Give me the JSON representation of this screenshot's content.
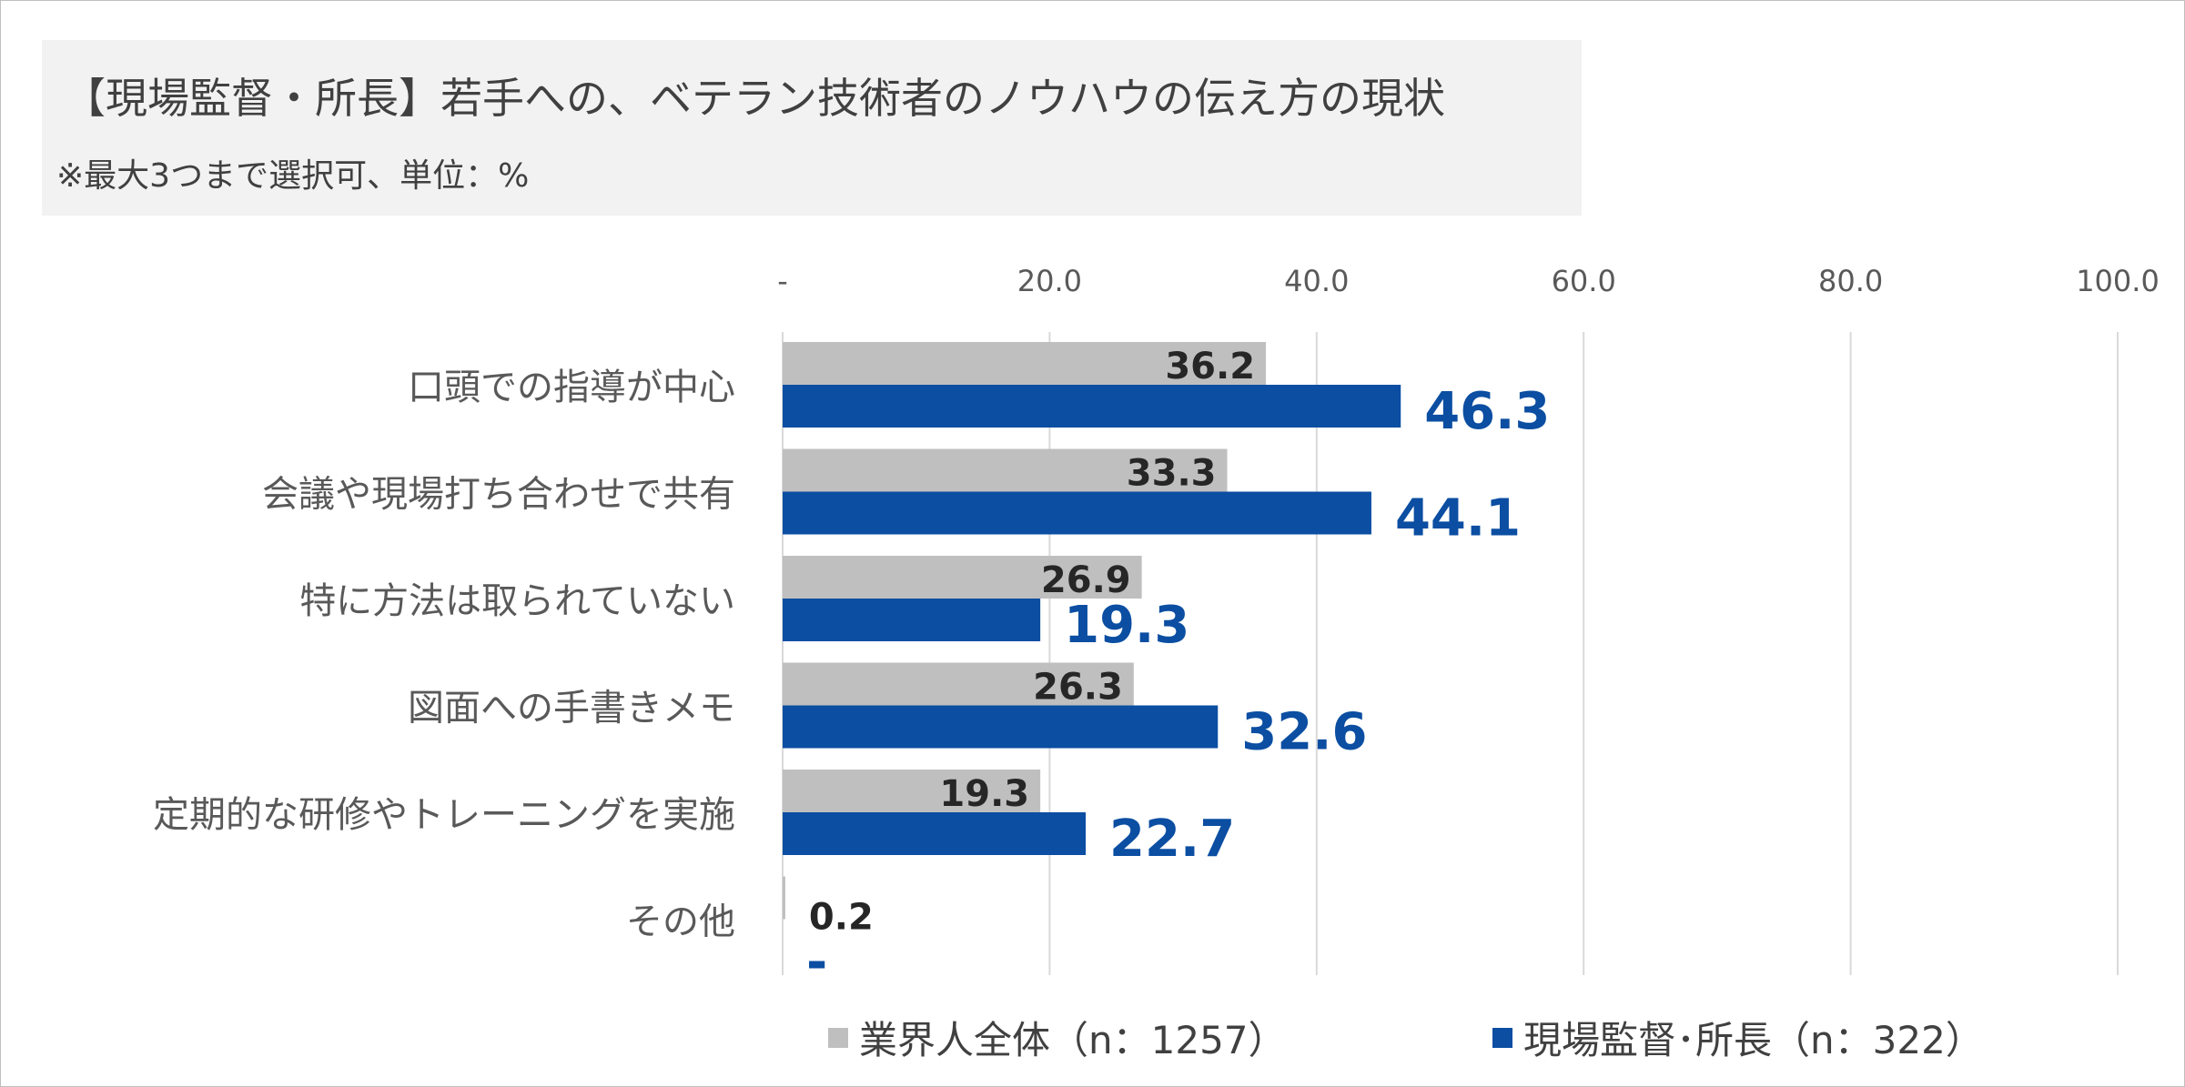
{
  "title": "【現場監督・所長】若手への、ベテラン技術者のノウハウの伝え方の現状",
  "subtitle": "※最大3つまで選択可、単位：%",
  "colors": {
    "series_a": "#bfbfbf",
    "series_b": "#0b4ea2",
    "grid": "#d9d9d9"
  },
  "chart_data": {
    "type": "bar",
    "orientation": "horizontal",
    "xlim": [
      0,
      100
    ],
    "ticks": [
      "-",
      "20.0",
      "40.0",
      "60.0",
      "80.0",
      "100.0"
    ],
    "tick_values": [
      0,
      20,
      40,
      60,
      80,
      100
    ],
    "categories": [
      "口頭での指導が中心",
      "会議や現場打ち合わせで共有",
      "特に方法は取られていない",
      "図面への手書きメモ",
      "定期的な研修やトレーニングを実施",
      "その他"
    ],
    "series": [
      {
        "name": "業界人全体（n：1257）",
        "values": [
          36.2,
          33.3,
          26.9,
          26.3,
          19.3,
          0.2
        ],
        "labels": [
          "36.2",
          "33.3",
          "26.9",
          "26.3",
          "19.3",
          "0.2"
        ]
      },
      {
        "name": "現場監督･所長（n：322）",
        "values": [
          46.3,
          44.1,
          19.3,
          32.6,
          22.7,
          0
        ],
        "labels": [
          "46.3",
          "44.1",
          "19.3",
          "32.6",
          "22.7",
          "-"
        ]
      }
    ],
    "grid": true,
    "legend_position": "bottom"
  }
}
